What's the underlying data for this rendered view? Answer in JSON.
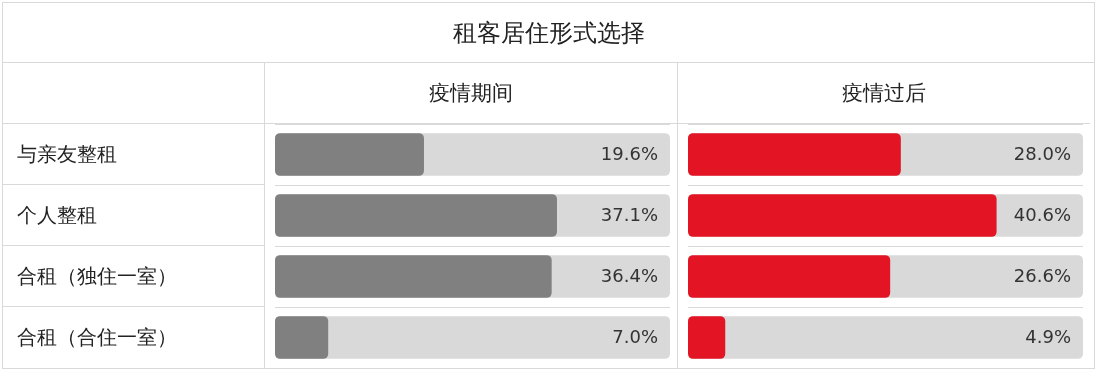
{
  "chart_data": [
    {
      "type": "other",
      "title": "租客居住形式选择"
    },
    {
      "type": "bar",
      "orientation": "horizontal",
      "title": "疫情期间",
      "categories": [
        "与亲友整租",
        "个人整租",
        "合租（独住一室）",
        "合租（合住一室）"
      ],
      "values": [
        19.6,
        37.1,
        36.4,
        7.0
      ],
      "value_labels": [
        "19.6%",
        "37.1%",
        "36.4%",
        "7.0%"
      ],
      "color": "#808080",
      "grid": "y",
      "tick_labels": "y"
    },
    {
      "type": "bar",
      "orientation": "horizontal",
      "title": "疫情过后",
      "categories": [
        null,
        null,
        null,
        null
      ],
      "values": [
        28.0,
        40.6,
        26.6,
        4.9
      ],
      "value_labels": [
        "28.0%",
        "40.6%",
        "26.6%",
        "4.9%"
      ],
      "color": "#e31424",
      "grid": "y",
      "tick_labels": false
    }
  ]
}
